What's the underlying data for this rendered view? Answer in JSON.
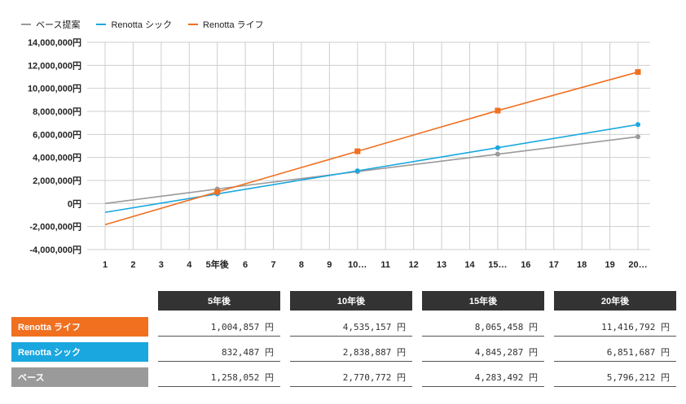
{
  "colors": {
    "base": "#9a9a9a",
    "sick": "#1aa7e0",
    "life": "#f07020",
    "header_bg": "#333333"
  },
  "chart_data": {
    "type": "line",
    "legend": [
      "ベース提案",
      "Renotta シック",
      "Renotta ライフ"
    ],
    "x_tick_labels": [
      "1",
      "2",
      "3",
      "4",
      "5年後",
      "6",
      "7",
      "8",
      "9",
      "10…",
      "11",
      "12",
      "13",
      "14",
      "15…",
      "16",
      "17",
      "18",
      "19",
      "20…"
    ],
    "x": [
      1,
      2,
      3,
      4,
      5,
      6,
      7,
      8,
      9,
      10,
      11,
      12,
      13,
      14,
      15,
      16,
      17,
      18,
      19,
      20
    ],
    "ylim": [
      -4000000,
      14000000
    ],
    "y_ticks": [
      -4000000,
      -2000000,
      0,
      2000000,
      4000000,
      6000000,
      8000000,
      10000000,
      12000000,
      14000000
    ],
    "y_tick_labels": [
      "-4,000,000円",
      "-2,000,000円",
      "0円",
      "2,000,000円",
      "4,000,000円",
      "6,000,000円",
      "8,000,000円",
      "10,000,000円",
      "12,000,000円",
      "14,000,000円"
    ],
    "series": [
      {
        "name": "ベース提案",
        "color": "#9a9a9a",
        "marker": "circle",
        "points": [
          [
            1,
            0
          ],
          [
            5,
            1258052
          ],
          [
            10,
            2770772
          ],
          [
            15,
            4283492
          ],
          [
            20,
            5796212
          ]
        ]
      },
      {
        "name": "Renotta シック",
        "color": "#1aa7e0",
        "marker": "circle",
        "points": [
          [
            1,
            -770000
          ],
          [
            5,
            832487
          ],
          [
            10,
            2838887
          ],
          [
            15,
            4845287
          ],
          [
            20,
            6851687
          ]
        ]
      },
      {
        "name": "Renotta ライフ",
        "color": "#f07020",
        "marker": "square",
        "points": [
          [
            1,
            -1840000
          ],
          [
            5,
            1004857
          ],
          [
            10,
            4535157
          ],
          [
            15,
            8065458
          ],
          [
            20,
            11416792
          ]
        ]
      }
    ]
  },
  "table": {
    "headers": [
      "5年後",
      "10年後",
      "15年後",
      "20年後"
    ],
    "rows": [
      {
        "label": "Renotta ライフ",
        "color": "#f07020",
        "values": [
          "1,004,857 円",
          "4,535,157 円",
          "8,065,458 円",
          "11,416,792 円"
        ]
      },
      {
        "label": "Renotta シック",
        "color": "#1aa7e0",
        "values": [
          "832,487 円",
          "2,838,887 円",
          "4,845,287 円",
          "6,851,687 円"
        ]
      },
      {
        "label": "ベース",
        "color": "#9a9a9a",
        "values": [
          "1,258,052 円",
          "2,770,772 円",
          "4,283,492 円",
          "5,796,212 円"
        ]
      }
    ]
  }
}
